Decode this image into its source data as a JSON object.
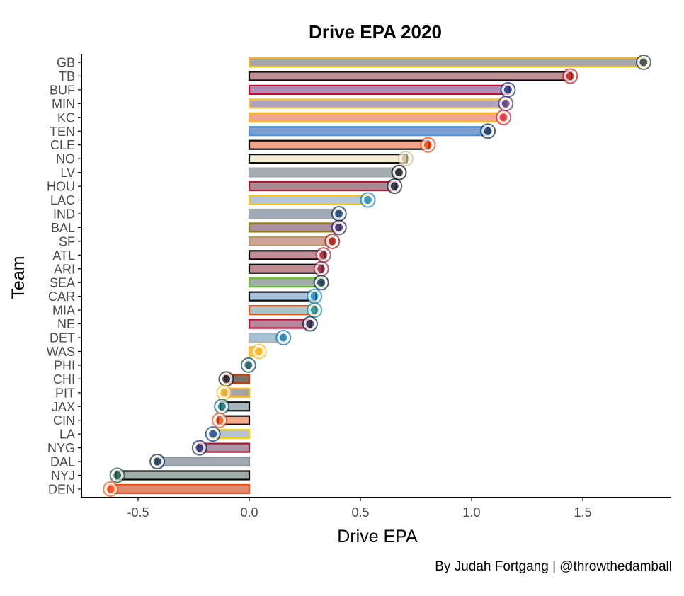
{
  "chart_data": {
    "type": "bar",
    "orientation": "horizontal",
    "title": "Drive EPA 2020",
    "xlabel": "Drive EPA",
    "ylabel": "Team",
    "caption": "By Judah Fortgang | @throwthedamball",
    "xlim": [
      -0.75,
      1.9
    ],
    "xticks": [
      -0.5,
      0.0,
      0.5,
      1.0,
      1.5
    ],
    "xtick_labels": [
      "-0.5",
      "0.0",
      "0.5",
      "1.0",
      "1.5"
    ],
    "grid": false,
    "legend": "none",
    "categories": [
      "GB",
      "TB",
      "BUF",
      "MIN",
      "KC",
      "TEN",
      "CLE",
      "NO",
      "LV",
      "HOU",
      "LAC",
      "IND",
      "BAL",
      "SF",
      "ATL",
      "ARI",
      "SEA",
      "CAR",
      "MIA",
      "NE",
      "DET",
      "WAS",
      "PHI",
      "CHI",
      "PIT",
      "JAX",
      "CIN",
      "LA",
      "NYG",
      "DAL",
      "NYJ",
      "DEN"
    ],
    "values": [
      1.78,
      1.45,
      1.17,
      1.16,
      1.15,
      1.08,
      0.81,
      0.71,
      0.68,
      0.66,
      0.54,
      0.41,
      0.41,
      0.38,
      0.34,
      0.33,
      0.33,
      0.3,
      0.3,
      0.28,
      0.16,
      0.05,
      -0.01,
      -0.11,
      -0.12,
      -0.13,
      -0.14,
      -0.17,
      -0.23,
      -0.42,
      -0.6,
      -0.63
    ],
    "fill_colors": [
      "#a8a9ad",
      "#c48e96",
      "#b08db5",
      "#b2a4c0",
      "#f0a590",
      "#7b9dd0",
      "#f3a68b",
      "#f5ecd7",
      "#a5acaf",
      "#a98b95",
      "#b6c8d8",
      "#a0aab8",
      "#a991a6",
      "#cfa39a",
      "#c48e96",
      "#c28b94",
      "#a5acaf",
      "#a9c4de",
      "#a8c6c9",
      "#b5899b",
      "#a6c0d6",
      "#f2c97d",
      "#a5acaf",
      "#7c6f67",
      "#a5a5a5",
      "#a7b6bb",
      "#f5a989",
      "#b8c2d0",
      "#ac95a6",
      "#a3a9b3",
      "#a0aca5",
      "#e08a6e"
    ],
    "outline_colors": [
      "#ffb612",
      "#0a0a0a",
      "#c60c30",
      "#ffc62f",
      "#ffb81c",
      "#4b92db",
      "#0a0a0a",
      "#0a0a0a",
      "#a5acaf",
      "#a71930",
      "#ffc20e",
      "#a2aaad",
      "#9e7c0c",
      "#b3995d",
      "#0a0a0a",
      "#0a0a0a",
      "#69be28",
      "#0a0a0a",
      "#fc4c02",
      "#c60c30",
      "#b0b7bc",
      "#ffb612",
      "#a5acaf",
      "#c83803",
      "#ffb612",
      "#0a0a0a",
      "#0a0a0a",
      "#ffd100",
      "#a71930",
      "#869397",
      "#0a0a0a",
      "#fb4f14"
    ],
    "logo_colors": [
      "#203731",
      "#d50a0a",
      "#00338d",
      "#4f2683",
      "#e31837",
      "#0c2340",
      "#ff3c00",
      "#d3bc8d",
      "#000000",
      "#03202f",
      "#0080c6",
      "#002c5f",
      "#241773",
      "#aa0000",
      "#a71930",
      "#97233f",
      "#002244",
      "#0085ca",
      "#008e97",
      "#002244",
      "#0076b6",
      "#ffb612",
      "#004c54",
      "#0b162a",
      "#ffb612",
      "#006778",
      "#fb4f14",
      "#003594",
      "#0b2265",
      "#041e42",
      "#125740",
      "#fb4f14"
    ],
    "logo_icons": [
      "packers-logo-icon",
      "buccaneers-logo-icon",
      "bills-logo-icon",
      "vikings-logo-icon",
      "chiefs-logo-icon",
      "titans-logo-icon",
      "browns-logo-icon",
      "saints-logo-icon",
      "raiders-logo-icon",
      "texans-logo-icon",
      "chargers-logo-icon",
      "colts-logo-icon",
      "ravens-logo-icon",
      "49ers-logo-icon",
      "falcons-logo-icon",
      "cardinals-logo-icon",
      "seahawks-logo-icon",
      "panthers-logo-icon",
      "dolphins-logo-icon",
      "patriots-logo-icon",
      "lions-logo-icon",
      "washington-logo-icon",
      "eagles-logo-icon",
      "bears-logo-icon",
      "steelers-logo-icon",
      "jaguars-logo-icon",
      "bengals-logo-icon",
      "rams-logo-icon",
      "giants-logo-icon",
      "cowboys-logo-icon",
      "jets-logo-icon",
      "broncos-logo-icon"
    ]
  }
}
